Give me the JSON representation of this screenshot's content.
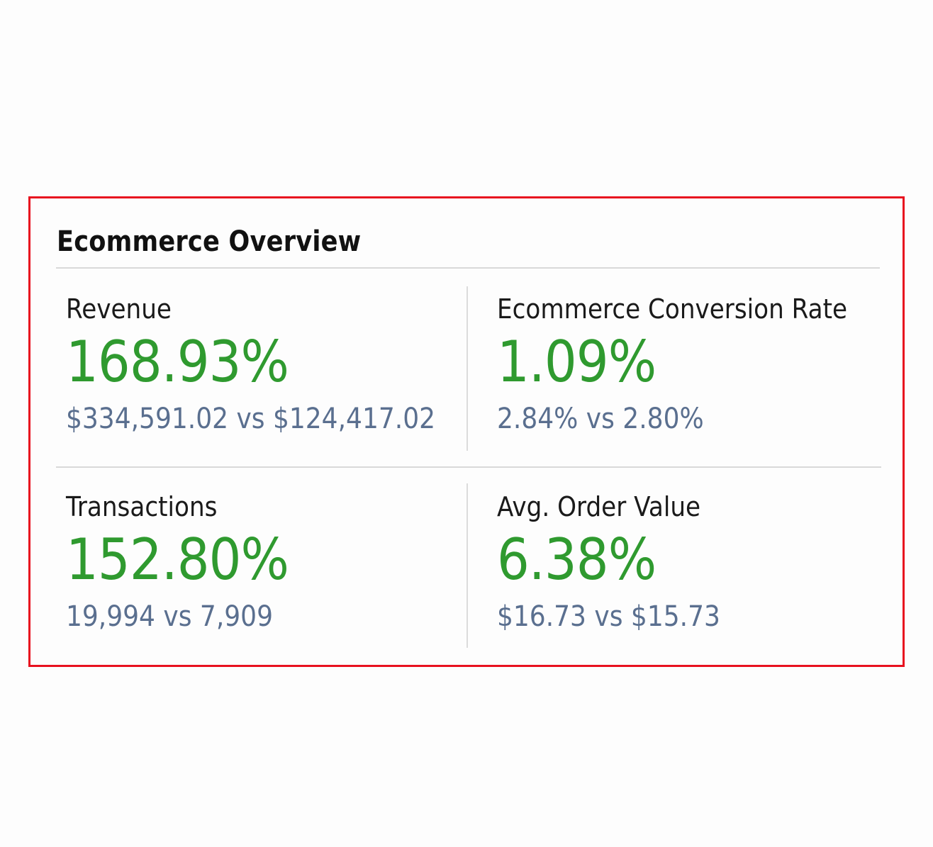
{
  "panel": {
    "title": "Ecommerce Overview",
    "border_color": "#e8111f"
  },
  "metrics": [
    {
      "label": "Revenue",
      "change": "168.93%",
      "comparison": "$334,591.02 vs $124,417.02"
    },
    {
      "label": "Ecommerce Conversion Rate",
      "change": "1.09%",
      "comparison": "2.84% vs 2.80%"
    },
    {
      "label": "Transactions",
      "change": "152.80%",
      "comparison": "19,994 vs 7,909"
    },
    {
      "label": "Avg. Order Value",
      "change": "6.38%",
      "comparison": "$16.73 vs $15.73"
    }
  ],
  "colors": {
    "positive_change": "#2f9a2f",
    "comparison_text": "#5a6f8f",
    "label_text": "#1a1a1a",
    "divider": "#d9d9d9"
  }
}
